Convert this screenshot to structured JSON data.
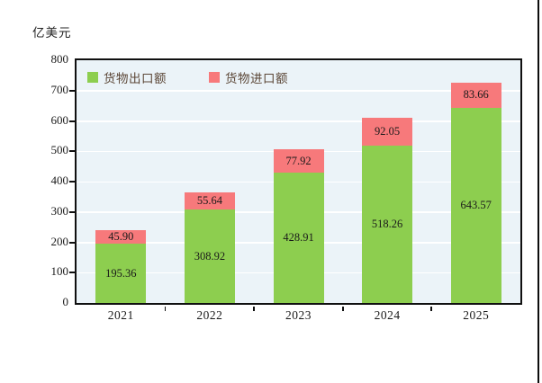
{
  "chart_data": {
    "type": "bar",
    "stacked": true,
    "unit_label": "亿美元",
    "categories": [
      "2021",
      "2022",
      "2023",
      "2024",
      "2025"
    ],
    "series": [
      {
        "name": "货物出口额",
        "color": "#8DCE4F",
        "values": [
          195.36,
          308.92,
          428.91,
          518.26,
          643.57
        ],
        "value_labels": [
          "195.36",
          "308.92",
          "428.91",
          "518.26",
          "643.57"
        ]
      },
      {
        "name": "货物进口额",
        "color": "#F7797B",
        "values": [
          45.9,
          55.64,
          77.92,
          92.05,
          83.66
        ],
        "value_labels": [
          "45.90",
          "55.64",
          "77.92",
          "92.05",
          "83.66"
        ]
      }
    ],
    "ylim": [
      0,
      800
    ],
    "yticks": [
      0,
      100,
      200,
      300,
      400,
      500,
      600,
      700,
      800
    ],
    "grid": "horizontal",
    "gridline_color": "#FFFFFF",
    "plot_background": "#EBF3F8",
    "axis_color": "#101010",
    "label_color": "#1A1A1A",
    "legend_text_color": "#5B4636",
    "legend_position": "top-left-inside"
  }
}
